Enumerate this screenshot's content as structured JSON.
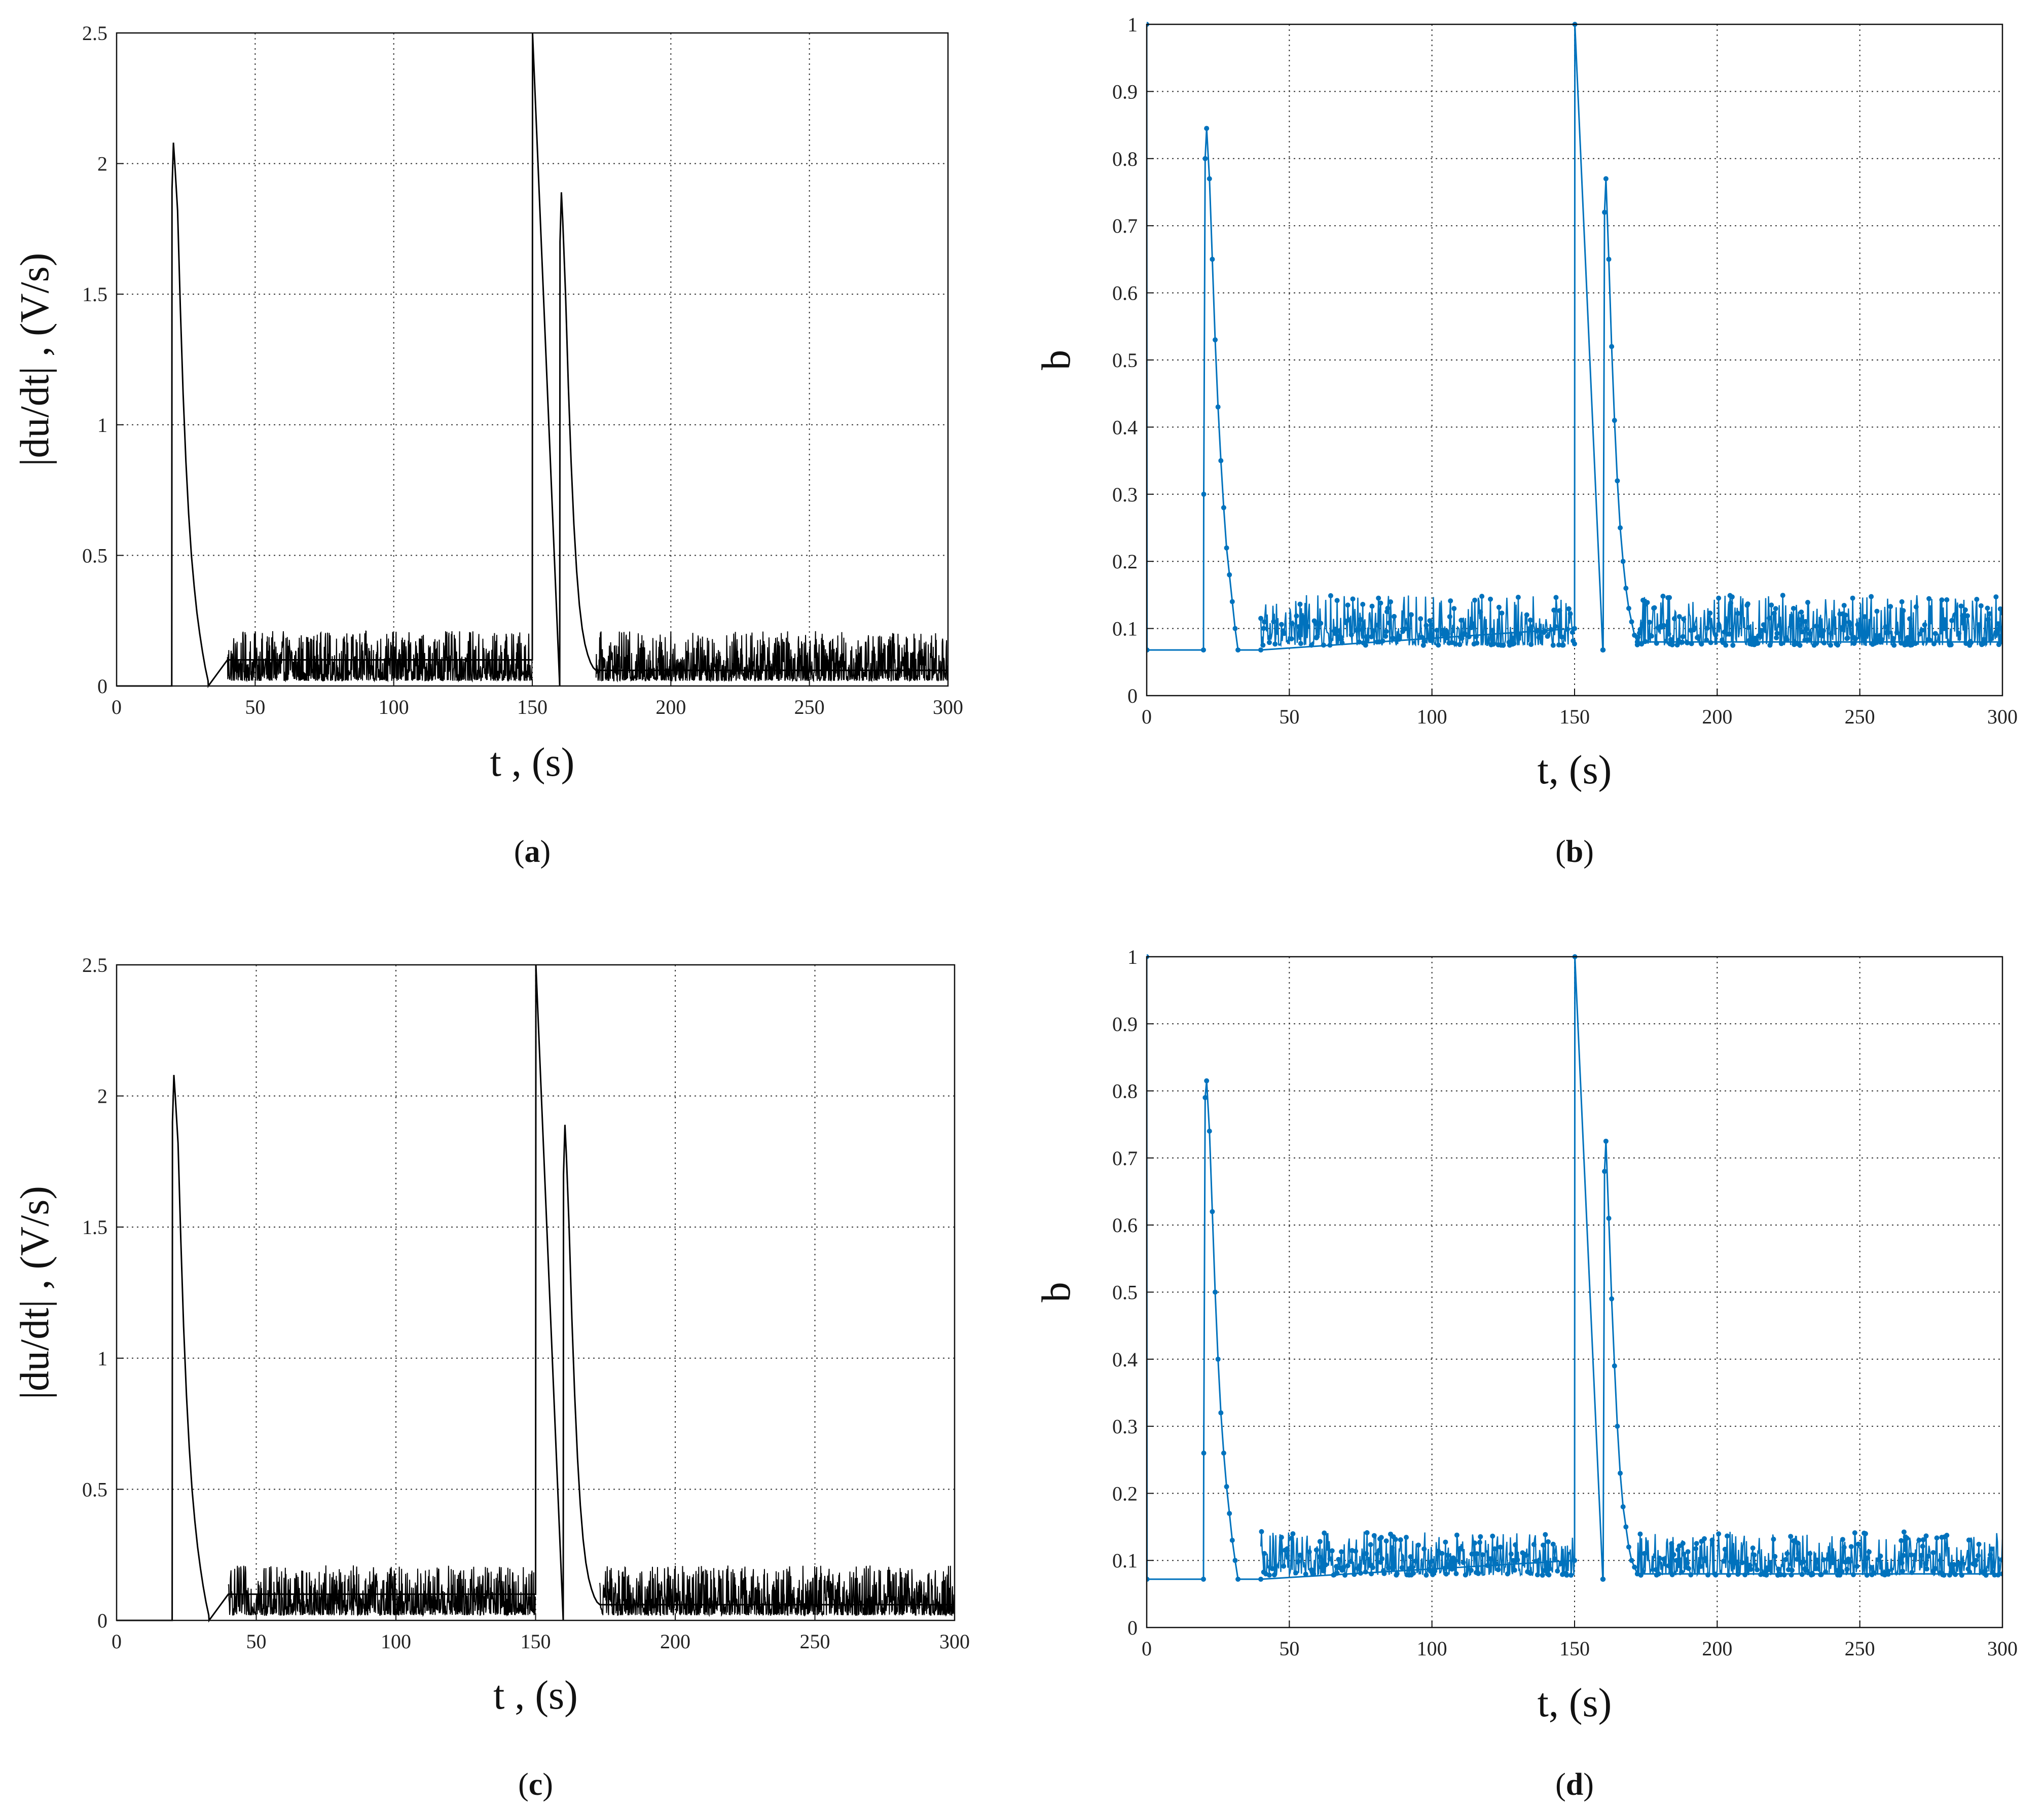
{
  "colors": {
    "black_series": "#000000",
    "blue_series": "#0072BD",
    "grid": "#333333"
  },
  "chart_data": [
    {
      "id": "a",
      "type": "line",
      "panel_open": "(",
      "panel_letter": "a",
      "panel_close": ")",
      "xlabel": "t , (s)",
      "ylabel": "|du/dt| , (V/s)",
      "xlim": [
        0,
        300
      ],
      "ylim": [
        0,
        2.5
      ],
      "xticks": [
        0,
        50,
        100,
        150,
        200,
        250,
        300
      ],
      "yticks": [
        0,
        0.5,
        1,
        1.5,
        2,
        2.5
      ],
      "grid": true,
      "color": "#000000",
      "markers": false,
      "series": [
        {
          "x": [
            0,
            19.9,
            20,
            20.5,
            21,
            22,
            23,
            24,
            25,
            26,
            27,
            28,
            29,
            30,
            31,
            32,
            33,
            33.1,
            40,
            150,
            150.1,
            159.9,
            160,
            160.5,
            161,
            162,
            163,
            164,
            165,
            166,
            167,
            168,
            169,
            170,
            171,
            172,
            173,
            300
          ],
          "y": [
            0,
            0,
            1.9,
            2.08,
            2.0,
            1.82,
            1.45,
            1.12,
            0.86,
            0.66,
            0.5,
            0.38,
            0.28,
            0.2,
            0.13,
            0.07,
            0.02,
            0,
            0.1,
            0.1,
            2.5,
            0,
            1.7,
            1.89,
            1.78,
            1.5,
            1.15,
            0.86,
            0.62,
            0.44,
            0.31,
            0.22,
            0.16,
            0.12,
            0.09,
            0.07,
            0.06,
            0.06
          ]
        }
      ],
      "noise": [
        {
          "x_start": 40,
          "x_end": 150,
          "base": 0.02,
          "range": 0.19
        },
        {
          "x_start": 173,
          "x_end": 300,
          "base": 0.02,
          "range": 0.19
        }
      ]
    },
    {
      "id": "b",
      "type": "line",
      "panel_open": "(",
      "panel_letter": "b",
      "panel_close": ")",
      "xlabel": "t, (s)",
      "ylabel": "b",
      "xlim": [
        0,
        300
      ],
      "ylim": [
        0,
        1
      ],
      "xticks": [
        0,
        50,
        100,
        150,
        200,
        250,
        300
      ],
      "yticks": [
        0,
        0.1,
        0.2,
        0.3,
        0.4,
        0.5,
        0.6,
        0.7,
        0.8,
        0.9,
        1
      ],
      "grid": true,
      "color": "#0072BD",
      "markers": true,
      "series": [
        {
          "x": [
            0,
            0.1,
            19.9,
            20,
            20.5,
            21,
            22,
            23,
            24,
            25,
            26,
            27,
            28,
            29,
            30,
            31,
            32,
            40,
            150,
            150.1,
            159.9,
            160,
            160.5,
            161,
            162,
            163,
            164,
            165,
            166,
            167,
            168,
            169,
            170,
            171,
            172,
            300
          ],
          "y": [
            1,
            0.068,
            0.068,
            0.3,
            0.8,
            0.845,
            0.77,
            0.65,
            0.53,
            0.43,
            0.35,
            0.28,
            0.22,
            0.18,
            0.14,
            0.1,
            0.068,
            0.068,
            0.1,
            1,
            0.068,
            0.068,
            0.72,
            0.77,
            0.65,
            0.52,
            0.41,
            0.32,
            0.25,
            0.2,
            0.16,
            0.13,
            0.11,
            0.09,
            0.08,
            0.08
          ]
        }
      ],
      "noise": [
        {
          "x_start": 40,
          "x_end": 150,
          "base": 0.075,
          "range": 0.075
        },
        {
          "x_start": 172,
          "x_end": 300,
          "base": 0.075,
          "range": 0.075
        }
      ]
    },
    {
      "id": "c",
      "type": "line",
      "panel_open": "(",
      "panel_letter": "c",
      "panel_close": ")",
      "xlabel": "t , (s)",
      "ylabel": "|du/dt| , (V/s)",
      "xlim": [
        0,
        300
      ],
      "ylim": [
        0,
        2.5
      ],
      "xticks": [
        0,
        50,
        100,
        150,
        200,
        250,
        300
      ],
      "yticks": [
        0,
        0.5,
        1,
        1.5,
        2,
        2.5
      ],
      "grid": true,
      "color": "#000000",
      "markers": false,
      "series": [
        {
          "x": [
            0,
            19.9,
            20,
            20.5,
            21,
            22,
            23,
            24,
            25,
            26,
            27,
            28,
            29,
            30,
            31,
            32,
            33,
            33.1,
            40,
            150,
            150.1,
            159.9,
            160,
            160.5,
            161,
            162,
            163,
            164,
            165,
            166,
            167,
            168,
            169,
            170,
            171,
            172,
            173,
            300
          ],
          "y": [
            0,
            0,
            1.9,
            2.08,
            2.0,
            1.82,
            1.45,
            1.12,
            0.86,
            0.66,
            0.5,
            0.38,
            0.28,
            0.2,
            0.13,
            0.07,
            0.02,
            0,
            0.1,
            0.1,
            2.5,
            0,
            1.7,
            1.89,
            1.78,
            1.5,
            1.15,
            0.86,
            0.62,
            0.44,
            0.31,
            0.22,
            0.16,
            0.12,
            0.09,
            0.07,
            0.06,
            0.06
          ]
        }
      ],
      "noise": [
        {
          "x_start": 40,
          "x_end": 150,
          "base": 0.02,
          "range": 0.19
        },
        {
          "x_start": 173,
          "x_end": 300,
          "base": 0.02,
          "range": 0.19
        }
      ]
    },
    {
      "id": "d",
      "type": "line",
      "panel_open": "(",
      "panel_letter": "d",
      "panel_close": ")",
      "xlabel": "t, (s)",
      "ylabel": "b",
      "xlim": [
        0,
        300
      ],
      "ylim": [
        0,
        1
      ],
      "xticks": [
        0,
        50,
        100,
        150,
        200,
        250,
        300
      ],
      "yticks": [
        0,
        0.1,
        0.2,
        0.3,
        0.4,
        0.5,
        0.6,
        0.7,
        0.8,
        0.9,
        1
      ],
      "grid": true,
      "color": "#0072BD",
      "markers": true,
      "series": [
        {
          "x": [
            0,
            0.1,
            19.9,
            20,
            20.5,
            21,
            22,
            23,
            24,
            25,
            26,
            27,
            28,
            29,
            30,
            31,
            32,
            40,
            150,
            150.1,
            159.9,
            160,
            160.5,
            161,
            162,
            163,
            164,
            165,
            166,
            167,
            168,
            169,
            170,
            171,
            172,
            300
          ],
          "y": [
            1,
            0.072,
            0.072,
            0.26,
            0.79,
            0.815,
            0.74,
            0.62,
            0.5,
            0.4,
            0.32,
            0.26,
            0.21,
            0.17,
            0.13,
            0.1,
            0.072,
            0.072,
            0.1,
            1,
            0.072,
            0.072,
            0.68,
            0.725,
            0.61,
            0.49,
            0.39,
            0.3,
            0.23,
            0.18,
            0.15,
            0.12,
            0.1,
            0.09,
            0.08,
            0.08
          ]
        }
      ],
      "noise": [
        {
          "x_start": 40,
          "x_end": 150,
          "base": 0.078,
          "range": 0.065
        },
        {
          "x_start": 172,
          "x_end": 300,
          "base": 0.078,
          "range": 0.065
        }
      ]
    }
  ]
}
